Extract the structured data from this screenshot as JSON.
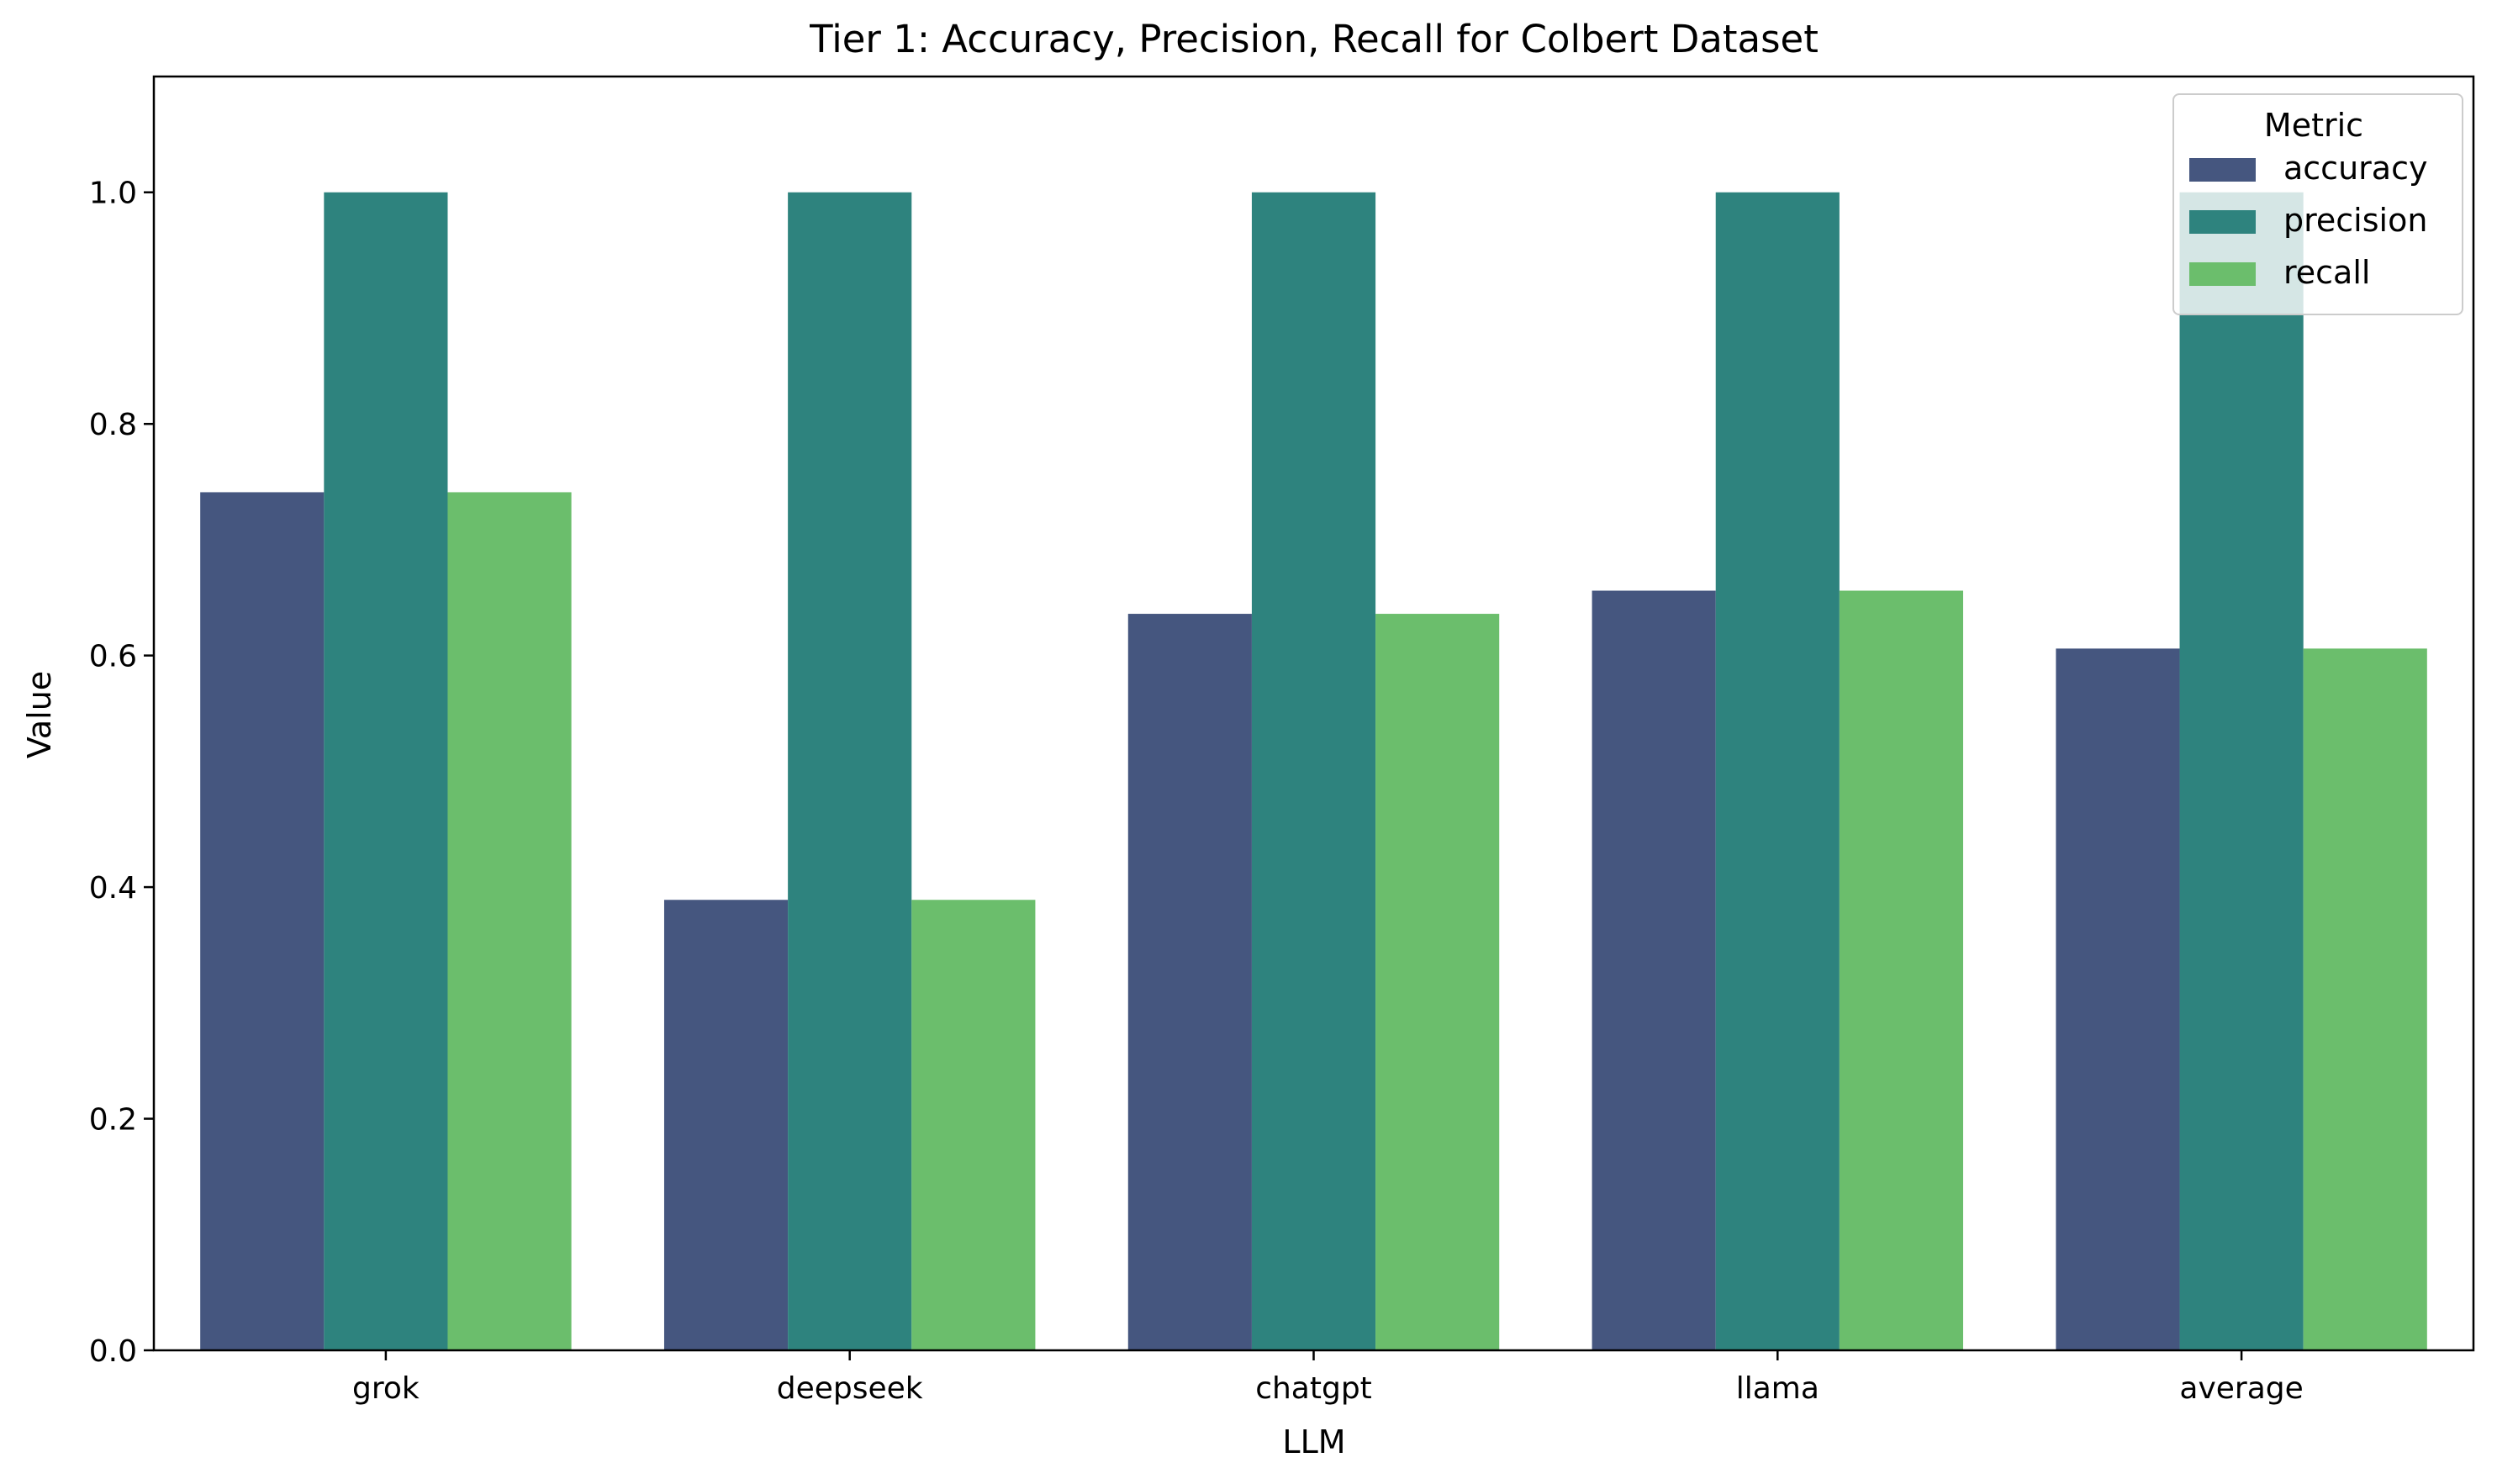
{
  "chart_data": {
    "type": "bar",
    "title": "Tier 1: Accuracy, Precision, Recall for Colbert Dataset",
    "xlabel": "LLM",
    "ylabel": "Value",
    "categories": [
      "grok",
      "deepseek",
      "chatgpt",
      "llama",
      "average"
    ],
    "series": [
      {
        "name": "accuracy",
        "color": "#45567f",
        "values": [
          0.741,
          0.389,
          0.636,
          0.656,
          0.606
        ]
      },
      {
        "name": "precision",
        "color": "#2e837e",
        "values": [
          1.0,
          1.0,
          1.0,
          1.0,
          1.0
        ]
      },
      {
        "name": "recall",
        "color": "#6bbe6c",
        "values": [
          0.741,
          0.389,
          0.636,
          0.656,
          0.606
        ]
      }
    ],
    "ylim": [
      0,
      1.1
    ],
    "yticks": [
      0.0,
      0.2,
      0.4,
      0.6,
      0.8,
      1.0
    ],
    "ytick_labels": [
      "0.0",
      "0.2",
      "0.4",
      "0.6",
      "0.8",
      "1.0"
    ],
    "grid": false,
    "legend": {
      "title": "Metric",
      "placement": "top-right"
    }
  }
}
